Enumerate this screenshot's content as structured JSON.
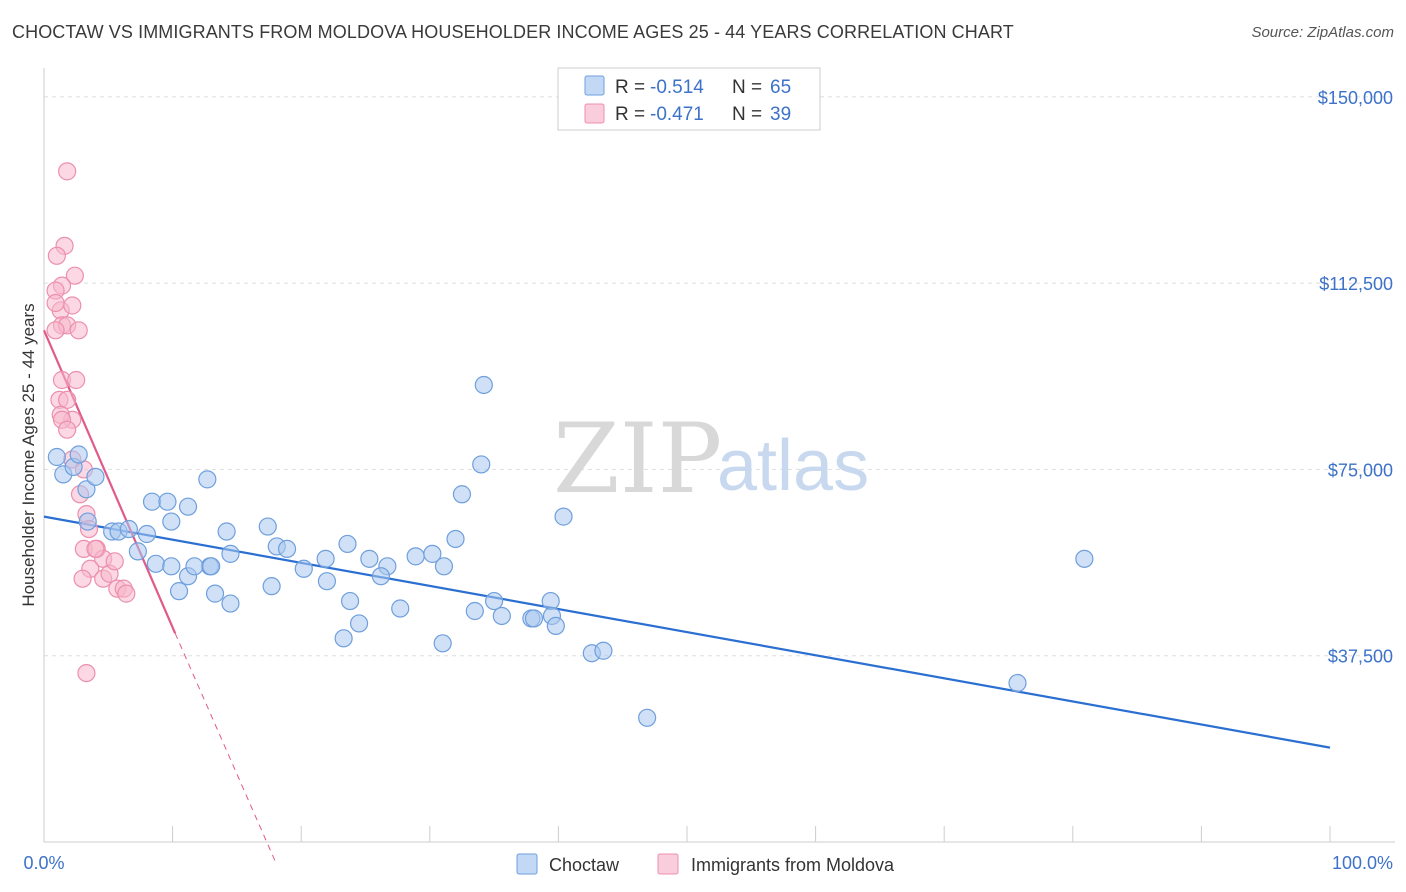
{
  "title": "CHOCTAW VS IMMIGRANTS FROM MOLDOVA HOUSEHOLDER INCOME AGES 25 - 44 YEARS CORRELATION CHART",
  "source": "Source: ZipAtlas.com",
  "watermark": {
    "zip": "ZIP",
    "atlas": "atlas"
  },
  "colors": {
    "choctaw_fill": "#a9c8f0",
    "choctaw_stroke": "#6f9fdc",
    "choctaw_line": "#2a6fd1",
    "moldova_fill": "#f7b8cc",
    "moldova_stroke": "#ec8fae",
    "moldova_line": "#e05a8a",
    "grid": "#dddddd",
    "tick_text": "#3d72c9"
  },
  "legend": {
    "rows": [
      {
        "r_label": "R = ",
        "r_value": "-0.514",
        "n_label": "N = ",
        "n_value": "65"
      },
      {
        "r_label": "R = ",
        "r_value": "-0.471",
        "n_label": "N = ",
        "n_value": "39"
      }
    ]
  },
  "bottom_legend": {
    "series1": "Choctaw",
    "series2": "Immigrants from Moldova"
  },
  "chart_data": {
    "type": "scatter",
    "title": "CHOCTAW VS IMMIGRANTS FROM MOLDOVA HOUSEHOLDER INCOME AGES 25 - 44 YEARS CORRELATION CHART",
    "xlabel": "",
    "ylabel": "Householder Income Ages 25 - 44 years",
    "xlim": [
      0,
      100
    ],
    "ylim": [
      0,
      155000
    ],
    "x_tick_labels": [
      "0.0%",
      "100.0%"
    ],
    "y_ticks": [
      37500,
      75000,
      112500,
      150000
    ],
    "y_tick_labels": [
      "$37,500",
      "$75,000",
      "$112,500",
      "$150,000"
    ],
    "series": [
      {
        "name": "Choctaw",
        "r": -0.514,
        "n": 65,
        "trend": {
          "x0": 0,
          "y0": 65500,
          "x1": 100,
          "y1": 19000
        },
        "points": [
          [
            1,
            77500
          ],
          [
            1.5,
            74000
          ],
          [
            2.3,
            75500
          ],
          [
            2.7,
            78000
          ],
          [
            3.3,
            71000
          ],
          [
            4,
            73500
          ],
          [
            3.4,
            64500
          ],
          [
            5.3,
            62500
          ],
          [
            5.8,
            62500
          ],
          [
            6.6,
            63000
          ],
          [
            8,
            62000
          ],
          [
            8.4,
            68500
          ],
          [
            7.3,
            58500
          ],
          [
            9.9,
            64500
          ],
          [
            9.6,
            68500
          ],
          [
            11.2,
            67500
          ],
          [
            8.7,
            56000
          ],
          [
            9.9,
            55500
          ],
          [
            11.2,
            53500
          ],
          [
            10.5,
            50500
          ],
          [
            12.9,
            55500
          ],
          [
            11.7,
            55500
          ],
          [
            12.7,
            73000
          ],
          [
            14.2,
            62500
          ],
          [
            14.5,
            58000
          ],
          [
            13,
            55500
          ],
          [
            13.3,
            50000
          ],
          [
            14.5,
            48000
          ],
          [
            17.7,
            51500
          ],
          [
            17.4,
            63500
          ],
          [
            18.1,
            59500
          ],
          [
            18.9,
            59000
          ],
          [
            20.2,
            55000
          ],
          [
            22,
            52500
          ],
          [
            21.9,
            57000
          ],
          [
            23.6,
            60000
          ],
          [
            23.8,
            48500
          ],
          [
            23.3,
            41000
          ],
          [
            24.5,
            44000
          ],
          [
            27.7,
            47000
          ],
          [
            26.7,
            55500
          ],
          [
            26.2,
            53500
          ],
          [
            25.3,
            57000
          ],
          [
            28.9,
            57500
          ],
          [
            30.2,
            58000
          ],
          [
            31.1,
            55500
          ],
          [
            32.5,
            70000
          ],
          [
            32,
            61000
          ],
          [
            31,
            40000
          ],
          [
            33.5,
            46500
          ],
          [
            35,
            48500
          ],
          [
            35.6,
            45500
          ],
          [
            37.9,
            45000
          ],
          [
            38.1,
            45000
          ],
          [
            39.4,
            48500
          ],
          [
            39.5,
            45500
          ],
          [
            39.8,
            43500
          ],
          [
            40.4,
            65500
          ],
          [
            42.6,
            38000
          ],
          [
            43.5,
            38500
          ],
          [
            34,
            76000
          ],
          [
            34.2,
            92000
          ],
          [
            46.9,
            25000
          ],
          [
            75.7,
            32000
          ],
          [
            80.9,
            57000
          ]
        ]
      },
      {
        "name": "Immigrants from Moldova",
        "r": -0.471,
        "n": 39,
        "trend": {
          "x0": 0,
          "y0": 103000,
          "x1": 10.2,
          "y1": 42000,
          "dashed_to_x": 18,
          "dashed_to_y": -4000
        },
        "points": [
          [
            1.8,
            135000
          ],
          [
            1.6,
            120000
          ],
          [
            1,
            118000
          ],
          [
            2.4,
            114000
          ],
          [
            1.4,
            112000
          ],
          [
            0.9,
            111000
          ],
          [
            1.3,
            107000
          ],
          [
            0.9,
            108500
          ],
          [
            1.4,
            104000
          ],
          [
            1.8,
            104000
          ],
          [
            2.2,
            108000
          ],
          [
            0.9,
            103000
          ],
          [
            2.7,
            103000
          ],
          [
            1.4,
            93000
          ],
          [
            2.5,
            93000
          ],
          [
            1.2,
            89000
          ],
          [
            1.8,
            89000
          ],
          [
            2.2,
            85000
          ],
          [
            1.3,
            86000
          ],
          [
            1.4,
            85000
          ],
          [
            1.8,
            83000
          ],
          [
            2.2,
            77000
          ],
          [
            3.1,
            75000
          ],
          [
            2.8,
            70000
          ],
          [
            3.3,
            66000
          ],
          [
            3.5,
            63000
          ],
          [
            3.1,
            59000
          ],
          [
            4.1,
            59000
          ],
          [
            4.6,
            57000
          ],
          [
            3.6,
            55000
          ],
          [
            4,
            59000
          ],
          [
            3,
            53000
          ],
          [
            4.6,
            53000
          ],
          [
            3.3,
            34000
          ],
          [
            5.1,
            54000
          ],
          [
            5.5,
            56500
          ],
          [
            5.7,
            51000
          ],
          [
            6.2,
            51000
          ],
          [
            6.4,
            50000
          ]
        ]
      }
    ]
  }
}
